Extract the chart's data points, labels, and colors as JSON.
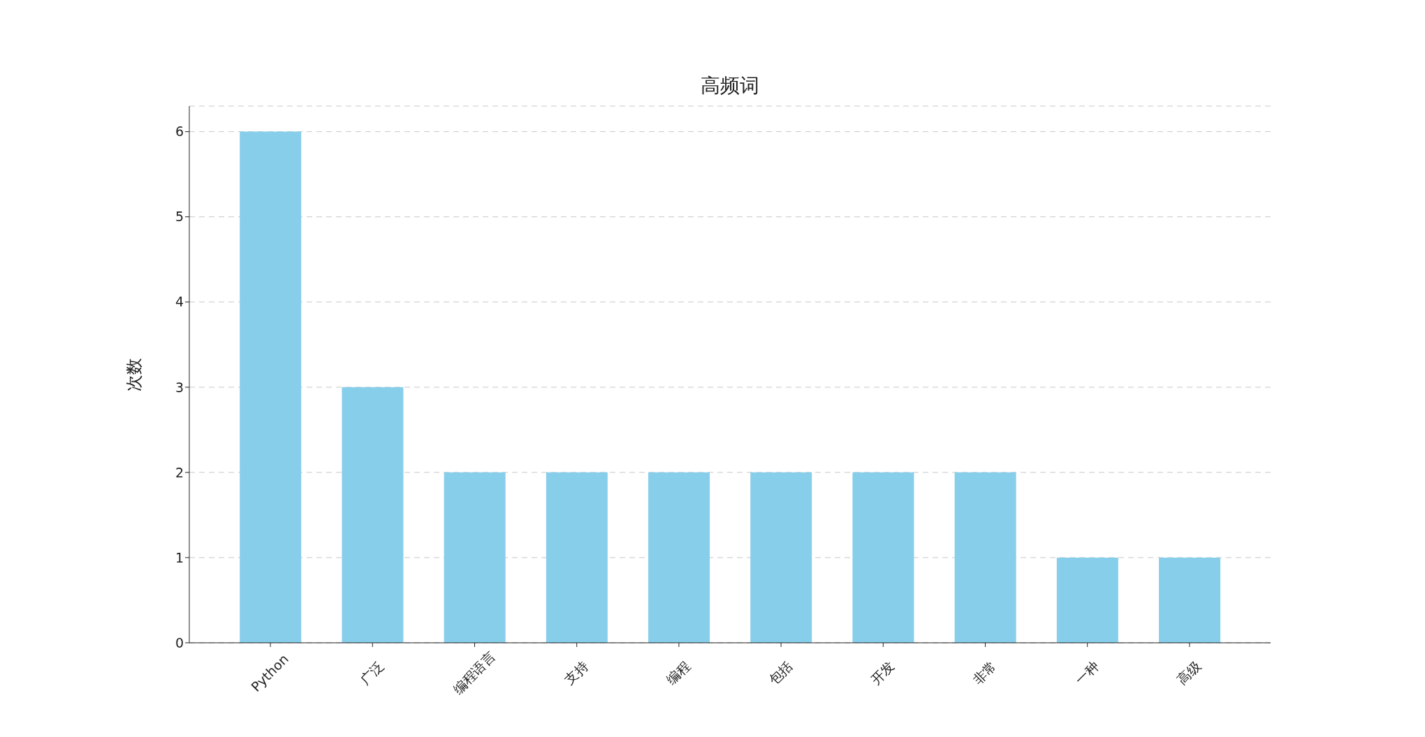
{
  "chart_data": {
    "type": "bar",
    "title": "高频词",
    "ylabel": "次数",
    "categories": [
      "Python",
      "广泛",
      "编程语言",
      "支持",
      "编程",
      "包括",
      "开发",
      "非常",
      "一种",
      "高级"
    ],
    "values": [
      6,
      3,
      2,
      2,
      2,
      2,
      2,
      2,
      1,
      1
    ],
    "color": "#87ceeb",
    "ylim": [
      0,
      6.3
    ],
    "yticks": [
      0,
      1,
      2,
      3,
      4,
      5,
      6
    ],
    "grid": "y"
  }
}
